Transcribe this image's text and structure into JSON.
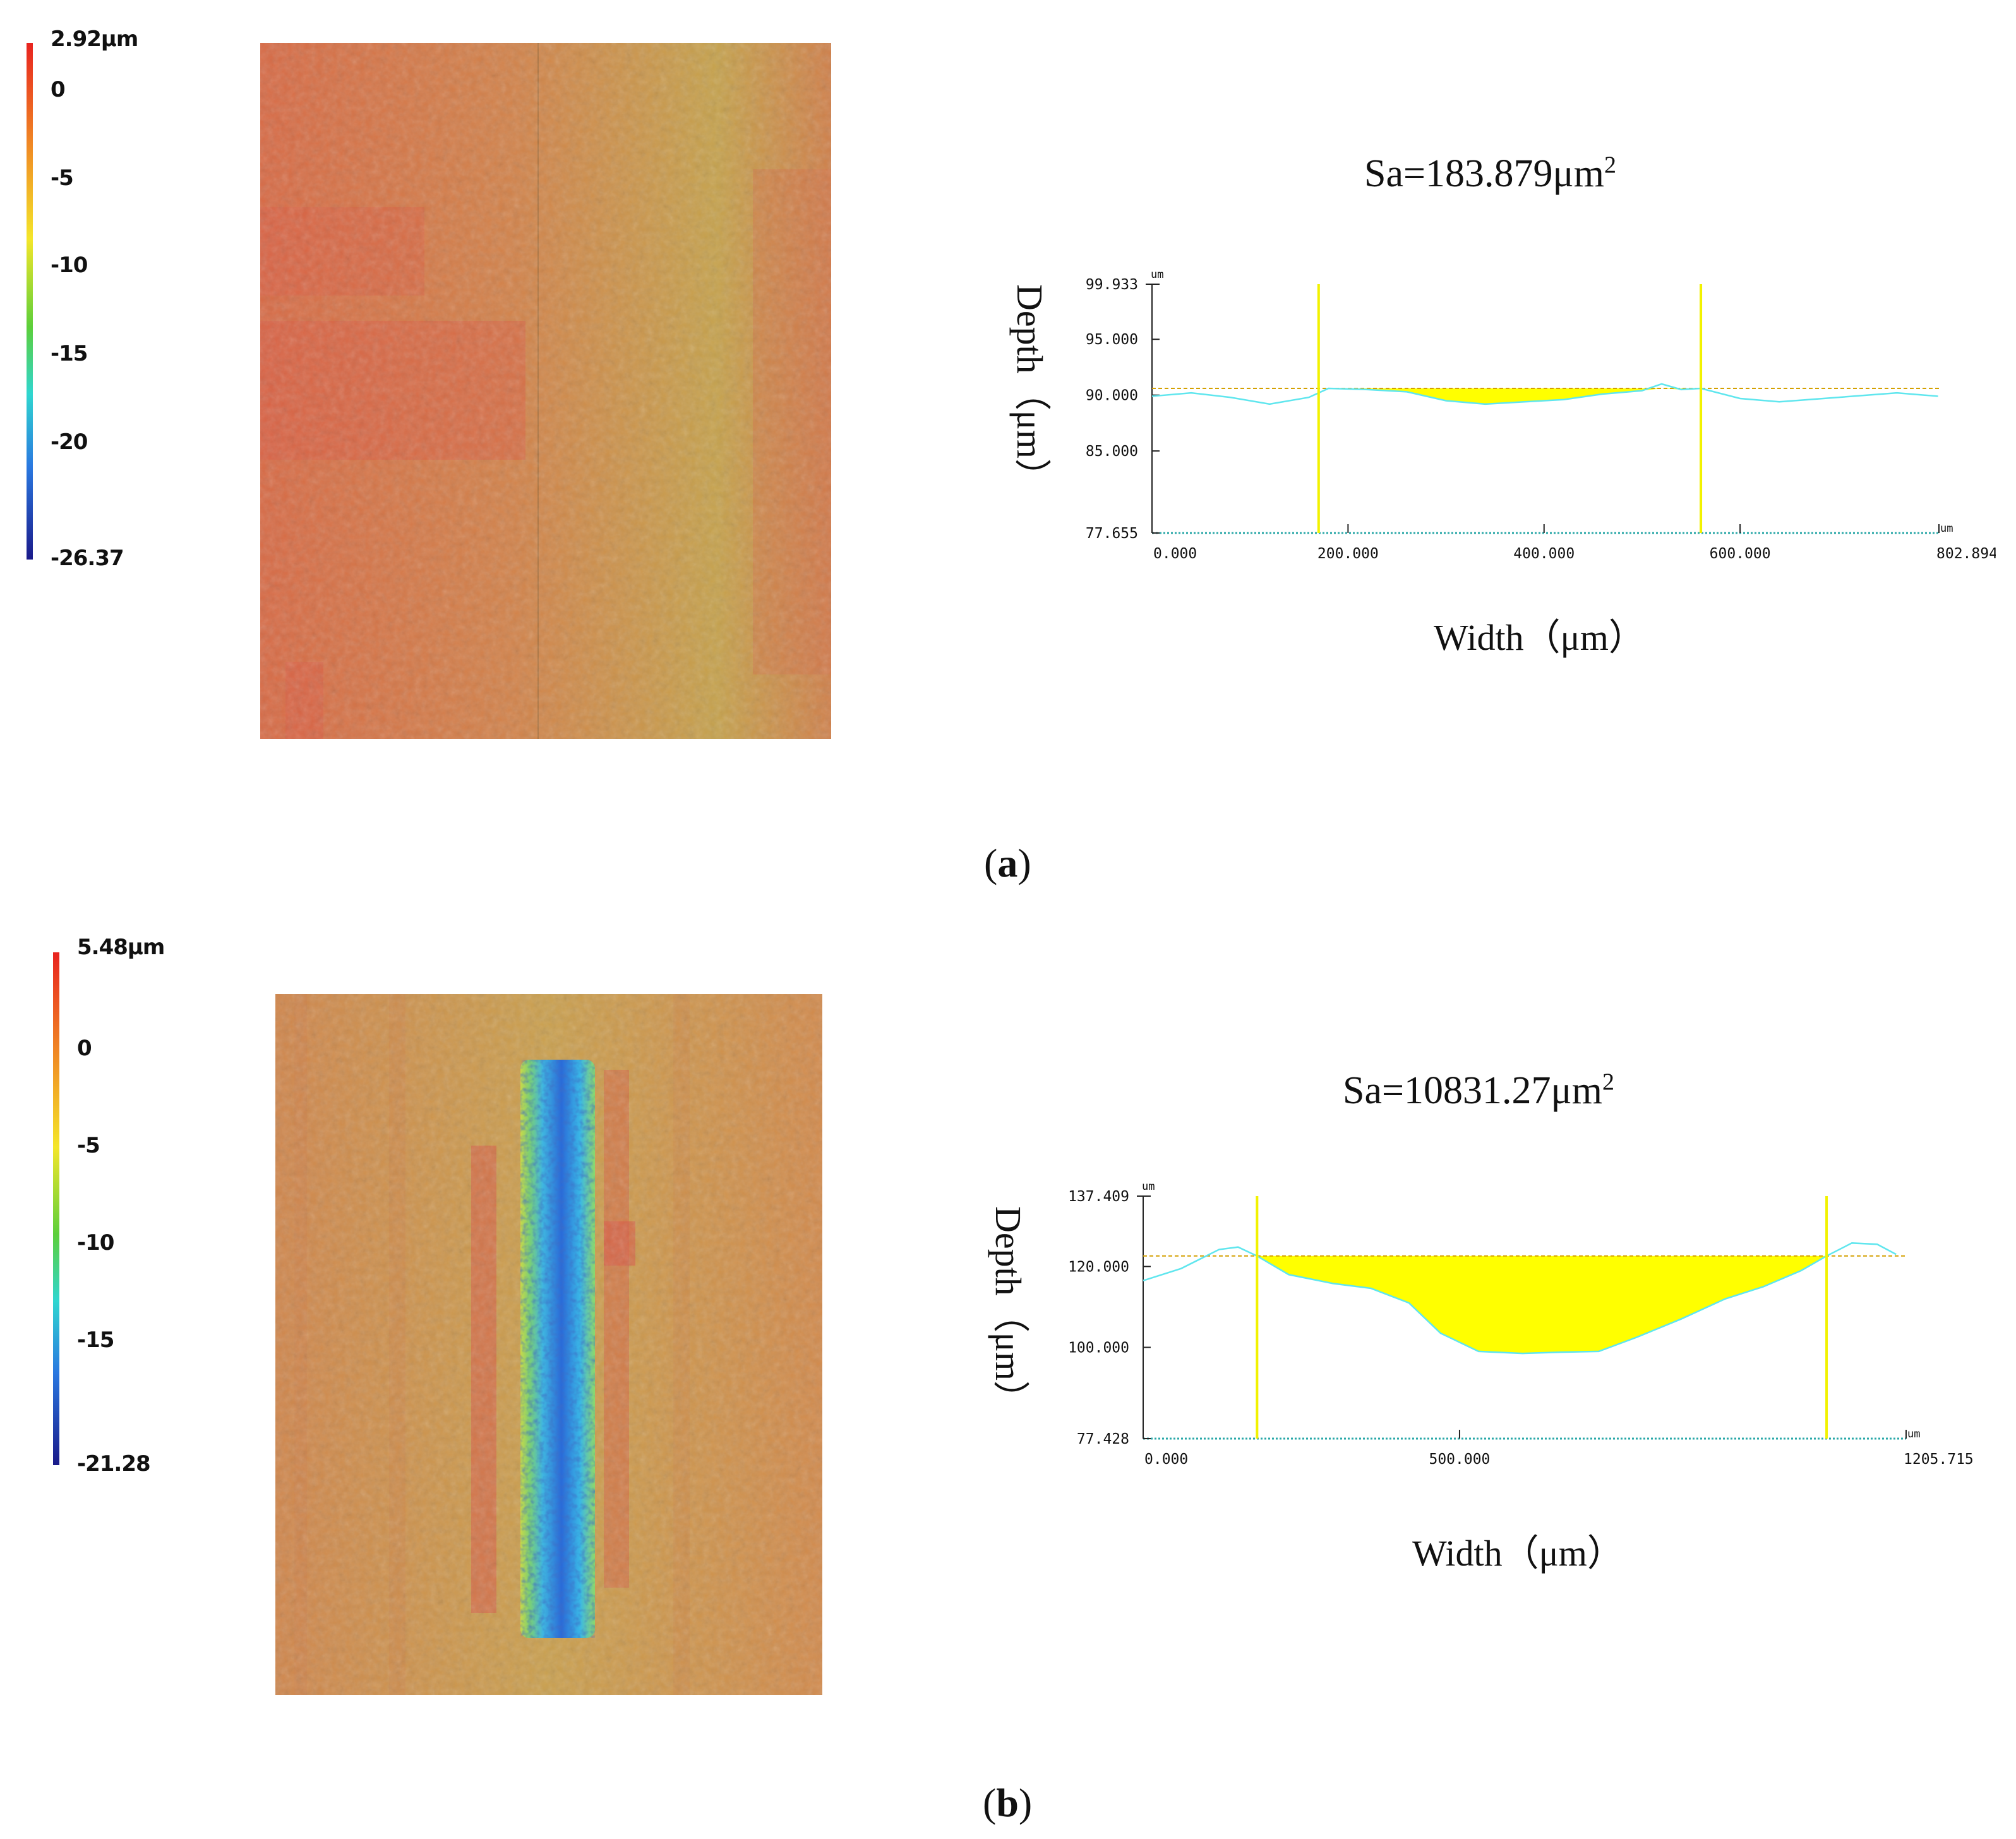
{
  "panel_a": {
    "caption_open": "(",
    "caption_letter": "a",
    "caption_close": ")",
    "colorbar": {
      "ticks": [
        "2.92μm",
        "0",
        "-5",
        "-10",
        "-15",
        "-20",
        "-26.37"
      ],
      "tick_values": [
        2.92,
        0,
        -5,
        -10,
        -15,
        -20,
        -26.37
      ],
      "min": -26.37,
      "max": 2.92
    }
  },
  "panel_b": {
    "caption_open": "(",
    "caption_letter": "b",
    "caption_close": ")",
    "colorbar": {
      "ticks": [
        "5.48μm",
        "0",
        "-5",
        "-10",
        "-15",
        "-21.28"
      ],
      "tick_values": [
        5.48,
        0,
        -5,
        -10,
        -15,
        -21.28
      ],
      "min": -21.28,
      "max": 5.48
    }
  },
  "colors": {
    "profile_line": "#5fe6ee",
    "fill": "#ffff00",
    "marker": "#f2f200",
    "reference": "#d4a000",
    "baseline": "#2aa8a8",
    "axis": "#222222"
  },
  "chart_data": [
    {
      "type": "area",
      "title_prefix": "Sa=183.879μm",
      "title_sup": "2",
      "xlabel": "Width（μm）",
      "ylabel": "Depth（μm）",
      "unit": "um",
      "xlim": [
        0,
        802.894
      ],
      "ylim": [
        77.655,
        99.933
      ],
      "x_ticks": [
        0,
        200,
        400,
        600,
        802.894
      ],
      "x_tick_labels": [
        "0.000",
        "200.000",
        "400.000",
        "600.000",
        "802.894"
      ],
      "y_ticks": [
        99.933,
        95,
        90,
        85,
        77.655
      ],
      "y_tick_labels": [
        "99.933",
        "95.000",
        "90.000",
        "85.000",
        "77.655"
      ],
      "reference_level": 90.6,
      "markers_x": [
        170,
        560
      ],
      "x": [
        0,
        40,
        80,
        120,
        160,
        180,
        220,
        260,
        300,
        340,
        380,
        420,
        460,
        500,
        520,
        540,
        560,
        600,
        640,
        700,
        760,
        802
      ],
      "y": [
        89.9,
        90.2,
        89.8,
        89.2,
        89.8,
        90.6,
        90.5,
        90.3,
        89.5,
        89.2,
        89.4,
        89.6,
        90.1,
        90.4,
        91.0,
        90.5,
        90.6,
        89.7,
        89.4,
        89.8,
        90.2,
        89.9
      ]
    },
    {
      "type": "area",
      "title_prefix": "Sa=10831.27μm",
      "title_sup": "2",
      "xlabel": "Width（μm）",
      "ylabel": "Depth（μm）",
      "unit": "um",
      "xlim": [
        0,
        1205.715
      ],
      "ylim": [
        77.428,
        137.409
      ],
      "x_ticks": [
        0,
        500,
        1205.715
      ],
      "x_tick_labels": [
        "0.000",
        "500.000",
        "1205.715"
      ],
      "y_ticks": [
        137.409,
        120,
        100,
        77.428
      ],
      "y_tick_labels": [
        "137.409",
        "120.000",
        "100.000",
        "77.428"
      ],
      "reference_level": 122.6,
      "markers_x": [
        180,
        1080
      ],
      "x": [
        0,
        60,
        120,
        150,
        180,
        230,
        300,
        360,
        420,
        470,
        530,
        600,
        660,
        720,
        780,
        850,
        920,
        980,
        1040,
        1080,
        1120,
        1160,
        1190
      ],
      "y": [
        116.5,
        119.5,
        124.2,
        124.8,
        122.6,
        118.0,
        115.8,
        114.6,
        111.0,
        103.5,
        99.0,
        98.5,
        98.8,
        99.0,
        102.5,
        107.0,
        112.0,
        115.0,
        119.0,
        122.6,
        125.8,
        125.5,
        123.0
      ]
    }
  ]
}
